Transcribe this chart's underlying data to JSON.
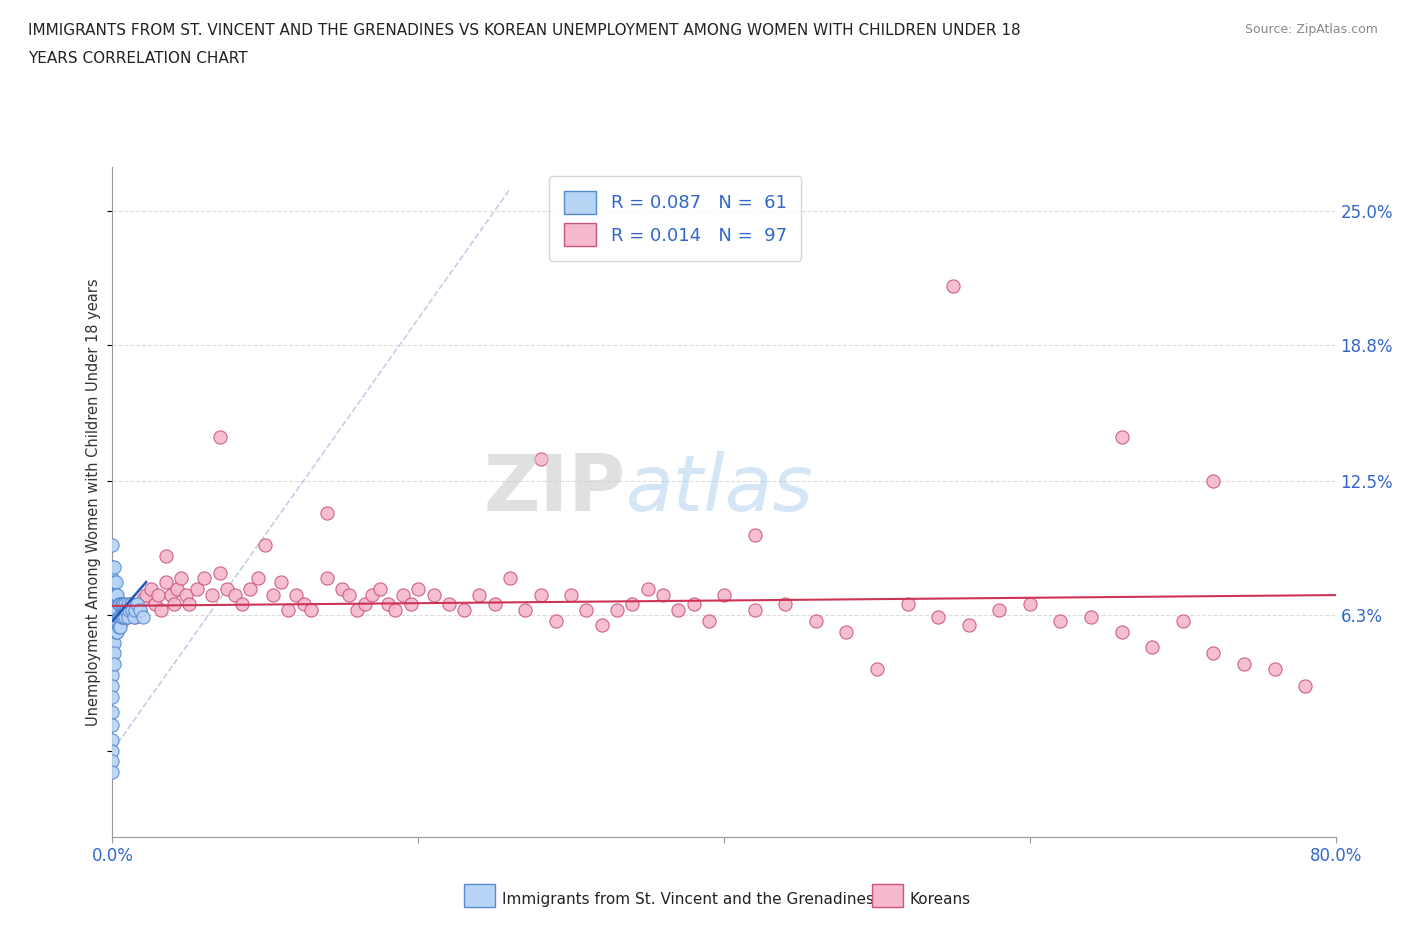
{
  "title_line1": "IMMIGRANTS FROM ST. VINCENT AND THE GRENADINES VS KOREAN UNEMPLOYMENT AMONG WOMEN WITH CHILDREN UNDER 18",
  "title_line2": "YEARS CORRELATION CHART",
  "source_text": "Source: ZipAtlas.com",
  "ylabel": "Unemployment Among Women with Children Under 18 years",
  "xmin": 0.0,
  "xmax": 0.8,
  "ymin": -0.04,
  "ymax": 0.27,
  "ytick_vals": [
    0.0,
    0.063,
    0.125,
    0.188,
    0.25
  ],
  "ytick_labels": [
    "",
    "6.3%",
    "12.5%",
    "18.8%",
    "25.0%"
  ],
  "xtick_vals": [
    0.0,
    0.2,
    0.4,
    0.6,
    0.8
  ],
  "xtick_labels": [
    "0.0%",
    "",
    "",
    "",
    "80.0%"
  ],
  "legend_color1": "#b8d4f5",
  "legend_color2": "#f5b8cc",
  "legend_edge1": "#5588cc",
  "legend_edge2": "#cc5577",
  "legend_label1": "Immigrants from St. Vincent and the Grenadines",
  "legend_label2": "Koreans",
  "watermark_zip": "ZIP",
  "watermark_atlas": "atlas",
  "background_color": "#ffffff",
  "scatter1_color": "#b8d4f5",
  "scatter1_edge": "#5588cc",
  "scatter2_color": "#f5b8cc",
  "scatter2_edge": "#cc5577",
  "trendline1_color": "#2255bb",
  "trendline2_color": "#cc3355",
  "grid_color": "#dddddd",
  "title_color": "#222222",
  "axis_label_color": "#333333",
  "tick_label_color": "#3366cc",
  "scatter1_x": [
    0.0,
    0.0,
    0.0,
    0.0,
    0.0,
    0.0,
    0.0,
    0.0,
    0.0,
    0.0,
    0.0,
    0.0,
    0.0,
    0.0,
    0.0,
    0.0,
    0.0,
    0.0,
    0.0,
    0.0,
    0.001,
    0.001,
    0.001,
    0.001,
    0.001,
    0.001,
    0.001,
    0.001,
    0.001,
    0.002,
    0.002,
    0.002,
    0.002,
    0.002,
    0.003,
    0.003,
    0.003,
    0.003,
    0.004,
    0.004,
    0.004,
    0.005,
    0.005,
    0.005,
    0.006,
    0.006,
    0.007,
    0.007,
    0.008,
    0.008,
    0.009,
    0.01,
    0.01,
    0.011,
    0.012,
    0.013,
    0.014,
    0.015,
    0.016,
    0.018,
    0.02
  ],
  "scatter1_y": [
    0.095,
    0.085,
    0.08,
    0.075,
    0.07,
    0.065,
    0.06,
    0.055,
    0.05,
    0.045,
    0.04,
    0.035,
    0.03,
    0.025,
    0.018,
    0.012,
    0.005,
    0.0,
    -0.005,
    -0.01,
    0.085,
    0.078,
    0.072,
    0.065,
    0.06,
    0.055,
    0.05,
    0.045,
    0.04,
    0.078,
    0.072,
    0.065,
    0.06,
    0.055,
    0.072,
    0.065,
    0.06,
    0.055,
    0.068,
    0.062,
    0.057,
    0.068,
    0.062,
    0.057,
    0.068,
    0.062,
    0.068,
    0.062,
    0.068,
    0.062,
    0.065,
    0.068,
    0.062,
    0.065,
    0.068,
    0.065,
    0.062,
    0.065,
    0.068,
    0.065,
    0.062
  ],
  "scatter2_x": [
    0.0,
    0.002,
    0.004,
    0.006,
    0.008,
    0.01,
    0.012,
    0.015,
    0.018,
    0.02,
    0.022,
    0.025,
    0.028,
    0.03,
    0.032,
    0.035,
    0.038,
    0.04,
    0.042,
    0.045,
    0.048,
    0.05,
    0.055,
    0.06,
    0.065,
    0.07,
    0.075,
    0.08,
    0.085,
    0.09,
    0.095,
    0.1,
    0.105,
    0.11,
    0.115,
    0.12,
    0.125,
    0.13,
    0.14,
    0.15,
    0.155,
    0.16,
    0.165,
    0.17,
    0.175,
    0.18,
    0.185,
    0.19,
    0.195,
    0.2,
    0.21,
    0.22,
    0.23,
    0.24,
    0.25,
    0.26,
    0.27,
    0.28,
    0.29,
    0.3,
    0.31,
    0.32,
    0.33,
    0.34,
    0.35,
    0.36,
    0.37,
    0.38,
    0.39,
    0.4,
    0.42,
    0.44,
    0.46,
    0.48,
    0.5,
    0.52,
    0.54,
    0.56,
    0.58,
    0.6,
    0.62,
    0.64,
    0.66,
    0.68,
    0.7,
    0.72,
    0.74,
    0.76,
    0.78,
    0.035,
    0.07,
    0.14,
    0.28,
    0.42,
    0.55,
    0.66,
    0.72
  ],
  "scatter2_y": [
    0.068,
    0.065,
    0.062,
    0.06,
    0.062,
    0.065,
    0.068,
    0.062,
    0.065,
    0.07,
    0.072,
    0.075,
    0.068,
    0.072,
    0.065,
    0.078,
    0.072,
    0.068,
    0.075,
    0.08,
    0.072,
    0.068,
    0.075,
    0.08,
    0.072,
    0.082,
    0.075,
    0.072,
    0.068,
    0.075,
    0.08,
    0.095,
    0.072,
    0.078,
    0.065,
    0.072,
    0.068,
    0.065,
    0.08,
    0.075,
    0.072,
    0.065,
    0.068,
    0.072,
    0.075,
    0.068,
    0.065,
    0.072,
    0.068,
    0.075,
    0.072,
    0.068,
    0.065,
    0.072,
    0.068,
    0.08,
    0.065,
    0.072,
    0.06,
    0.072,
    0.065,
    0.058,
    0.065,
    0.068,
    0.075,
    0.072,
    0.065,
    0.068,
    0.06,
    0.072,
    0.065,
    0.068,
    0.06,
    0.055,
    0.038,
    0.068,
    0.062,
    0.058,
    0.065,
    0.068,
    0.06,
    0.062,
    0.055,
    0.048,
    0.06,
    0.045,
    0.04,
    0.038,
    0.03,
    0.09,
    0.145,
    0.11,
    0.135,
    0.1,
    0.215,
    0.145,
    0.125
  ],
  "ref_line_x": [
    0.0,
    0.26
  ],
  "ref_line_y": [
    0.0,
    0.26
  ]
}
